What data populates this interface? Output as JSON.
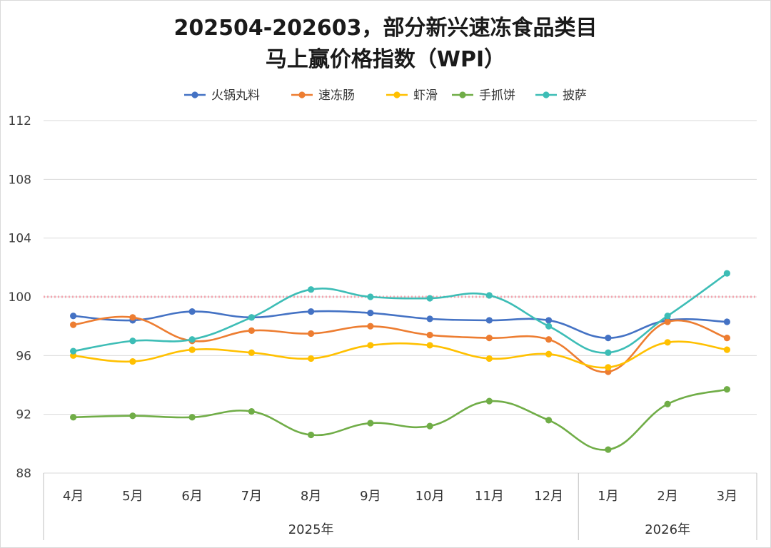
{
  "chart_data": {
    "type": "line",
    "title": [
      "202504-202603，部分新兴速冻食品类目",
      "马上赢价格指数（WPI）"
    ],
    "categories": [
      "4月",
      "5月",
      "6月",
      "7月",
      "8月",
      "9月",
      "10月",
      "11月",
      "12月",
      "1月",
      "2月",
      "3月"
    ],
    "year_groups": [
      {
        "label": "2025年",
        "count": 9
      },
      {
        "label": "2026年",
        "count": 3
      }
    ],
    "ylim": [
      88,
      112
    ],
    "yticks": [
      88,
      92,
      96,
      100,
      104,
      108,
      112
    ],
    "reference_line": {
      "value": 100,
      "color": "#f4a7b1",
      "style": "dotted"
    },
    "grid": true,
    "legend_position": "top",
    "series": [
      {
        "name": "火锅丸料",
        "color": "#4472c4",
        "values": [
          98.7,
          98.4,
          99.0,
          98.6,
          99.0,
          98.9,
          98.5,
          98.4,
          98.4,
          97.2,
          98.4,
          98.3
        ]
      },
      {
        "name": "速冻肠",
        "color": "#ed7d31",
        "values": [
          98.1,
          98.6,
          97.0,
          97.7,
          97.5,
          98.0,
          97.4,
          97.2,
          97.1,
          94.9,
          98.3,
          97.2
        ]
      },
      {
        "name": "虾滑",
        "color": "#ffc000",
        "values": [
          96.0,
          95.6,
          96.4,
          96.2,
          95.8,
          96.7,
          96.7,
          95.8,
          96.1,
          95.2,
          96.9,
          96.4
        ]
      },
      {
        "name": "手抓饼",
        "color": "#70ad47",
        "values": [
          91.8,
          91.9,
          91.8,
          92.2,
          90.6,
          91.4,
          91.2,
          92.9,
          91.6,
          89.6,
          92.7,
          93.7
        ]
      },
      {
        "name": "披萨",
        "color": "#3dbdb6",
        "values": [
          96.3,
          97.0,
          97.1,
          98.6,
          100.5,
          100.0,
          99.9,
          100.1,
          98.0,
          96.2,
          98.7,
          101.6
        ]
      }
    ]
  }
}
